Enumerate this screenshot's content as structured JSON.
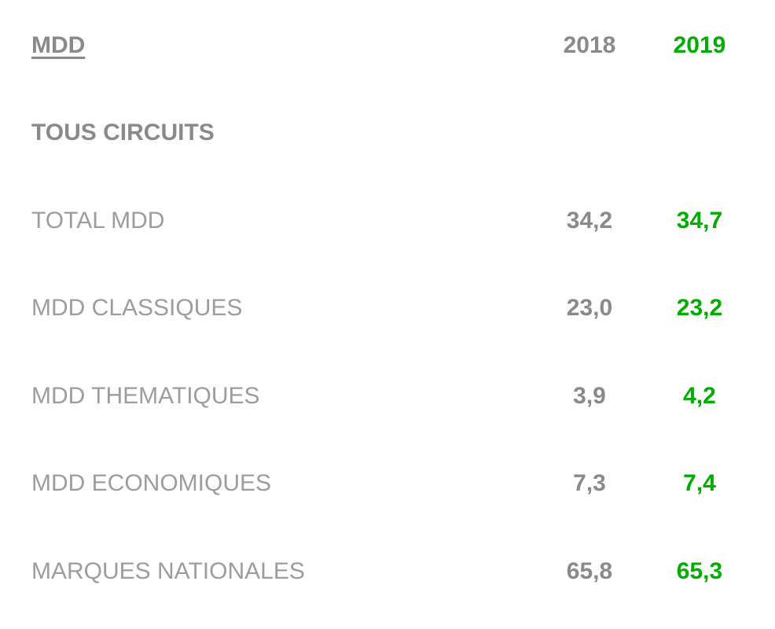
{
  "colors": {
    "header_gray": "#8a8a8a",
    "label_gray": "#9d9d9d",
    "value_2019_green": "#00ad00"
  },
  "table": {
    "title": "MDD",
    "columns": [
      {
        "label": "2018"
      },
      {
        "label": "2019"
      }
    ],
    "section_header": "TOUS CIRCUITS",
    "rows": [
      {
        "label": "TOTAL MDD",
        "value_2018": "34,2",
        "value_2019": "34,7"
      },
      {
        "label": "MDD CLASSIQUES",
        "value_2018": "23,0",
        "value_2019": "23,2"
      },
      {
        "label": "MDD THEMATIQUES",
        "value_2018": "3,9",
        "value_2019": "4,2"
      },
      {
        "label": "MDD ECONOMIQUES",
        "value_2018": "7,3",
        "value_2019": "7,4"
      },
      {
        "label": "MARQUES NATIONALES",
        "value_2018": "65,8",
        "value_2019": "65,3"
      }
    ]
  },
  "chart_data": {
    "type": "table",
    "title": "MDD",
    "section": "TOUS CIRCUITS",
    "categories": [
      "TOTAL MDD",
      "MDD CLASSIQUES",
      "MDD THEMATIQUES",
      "MDD ECONOMIQUES",
      "MARQUES NATIONALES"
    ],
    "series": [
      {
        "name": "2018",
        "values": [
          34.2,
          23.0,
          3.9,
          7.3,
          65.8
        ]
      },
      {
        "name": "2019",
        "values": [
          34.7,
          23.2,
          4.2,
          7.4,
          65.3
        ]
      }
    ],
    "layout_hints": {
      "decimal_separator": ",",
      "column_2018_color": "#8a8a8a",
      "column_2019_color": "#00ad00",
      "grid": false
    }
  }
}
